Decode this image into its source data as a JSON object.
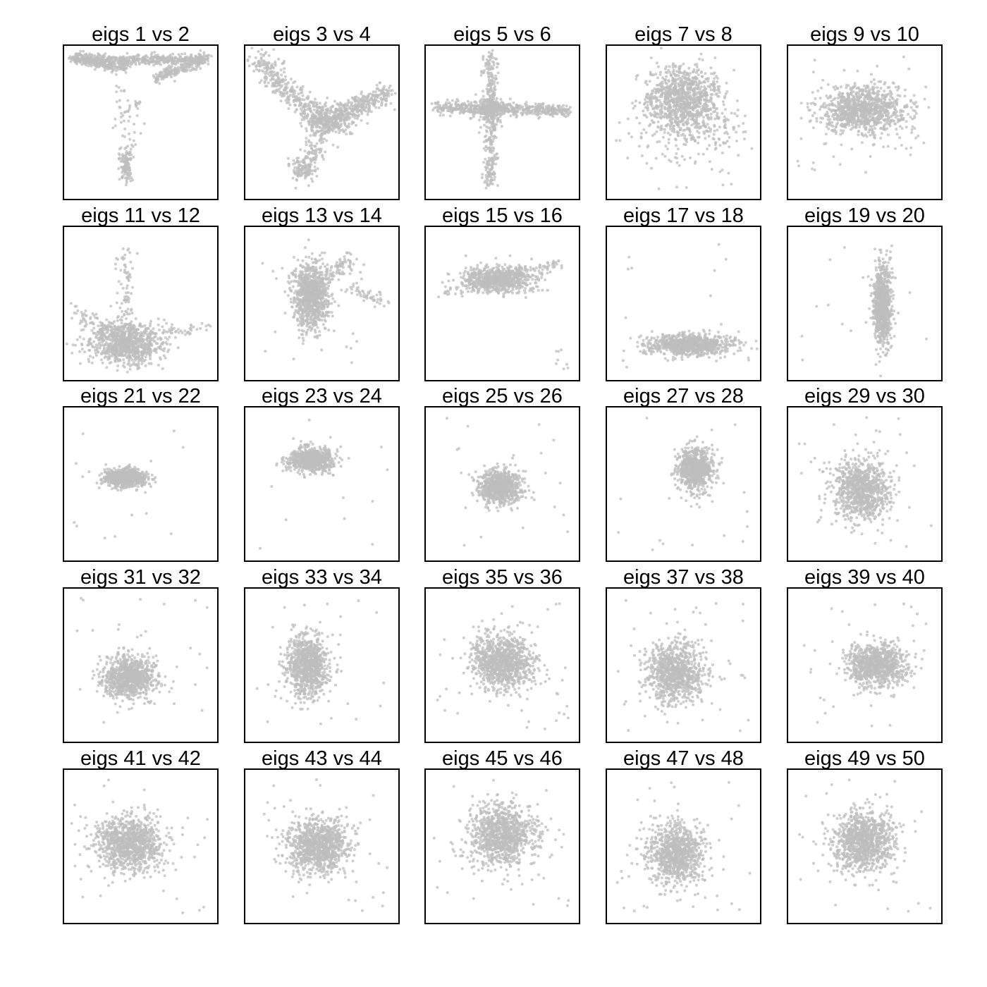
{
  "chart_data": {
    "type": "scatter",
    "layout": "5x5 grid of scatter panels",
    "point_color": "#bebebe",
    "axes_visible": false,
    "grid": false,
    "legend": "none",
    "panels": [
      {
        "title": "eigs 1 vs 2",
        "shape": "T-shape: dense horizontal band along top, sparse vertical stem down the center ending in a cluster at bottom"
      },
      {
        "title": "eigs 3 vs 4",
        "shape": "Y-shape: arm from upper-left, arm to upper-right, stem down to cluster at bottom"
      },
      {
        "title": "eigs 5 vs 6",
        "shape": "cross: long horizontal bar and vertical bar through center"
      },
      {
        "title": "eigs 7 vs 8",
        "shape": "broad dense blob upper-center with scattered points below"
      },
      {
        "title": "eigs 9 vs 10",
        "shape": "wide elliptical blob slightly above center"
      },
      {
        "title": "eigs 11 vs 12",
        "shape": "dense blob lower-center with vertical spike upward and side arms"
      },
      {
        "title": "eigs 13 vs 14",
        "shape": "vertical blob center with arm to the right"
      },
      {
        "title": "eigs 15 vs 16",
        "shape": "elongated diagonal streak in upper half"
      },
      {
        "title": "eigs 17 vs 18",
        "shape": "flat horizontal ellipse near bottom"
      },
      {
        "title": "eigs 19 vs 20",
        "shape": "narrow vertical ellipse right of center"
      },
      {
        "title": "eigs 21 vs 22",
        "shape": "small horizontal ellipse left of center"
      },
      {
        "title": "eigs 23 vs 24",
        "shape": "small ellipse upper-center"
      },
      {
        "title": "eigs 25 vs 26",
        "shape": "round blob center"
      },
      {
        "title": "eigs 27 vs 28",
        "shape": "round blob center"
      },
      {
        "title": "eigs 29 vs 30",
        "shape": "round blob center with diffuse spread"
      },
      {
        "title": "eigs 31 vs 32",
        "shape": "round blob center"
      },
      {
        "title": "eigs 33 vs 34",
        "shape": "round blob center"
      },
      {
        "title": "eigs 35 vs 36",
        "shape": "round blob center"
      },
      {
        "title": "eigs 37 vs 38",
        "shape": "round blob center"
      },
      {
        "title": "eigs 39 vs 40",
        "shape": "round blob center"
      },
      {
        "title": "eigs 41 vs 42",
        "shape": "round blob center"
      },
      {
        "title": "eigs 43 vs 44",
        "shape": "round blob center"
      },
      {
        "title": "eigs 45 vs 46",
        "shape": "round blob center"
      },
      {
        "title": "eigs 47 vs 48",
        "shape": "round blob lower-center"
      },
      {
        "title": "eigs 49 vs 50",
        "shape": "round blob center"
      }
    ]
  }
}
